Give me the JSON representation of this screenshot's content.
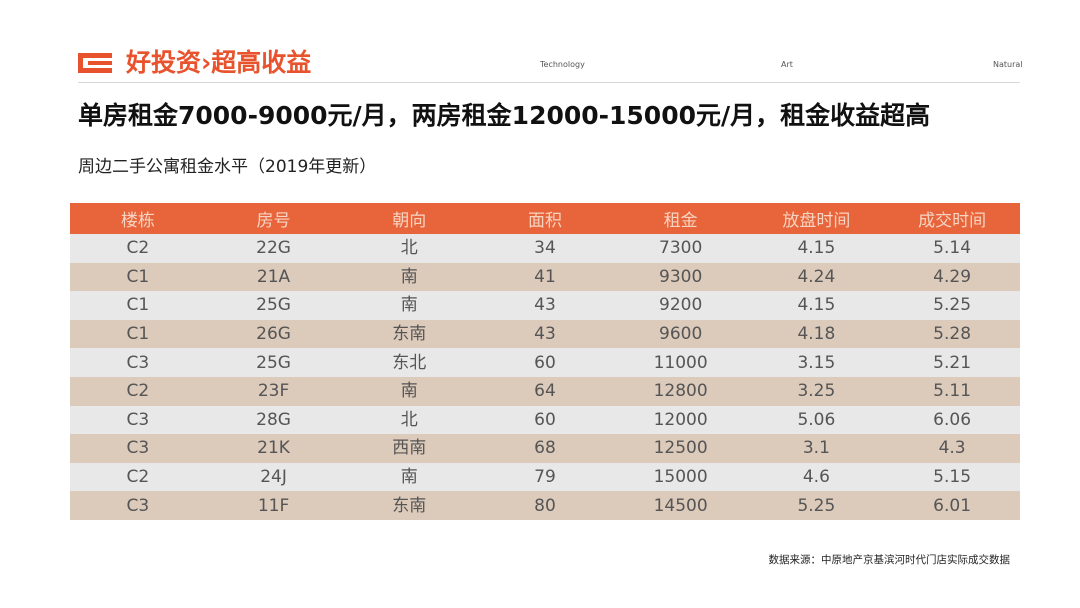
{
  "header": {
    "brand_title": "好投资›超高收益",
    "nav": [
      "Technology",
      "Art",
      "Natural"
    ],
    "accent_color": "#e8522c"
  },
  "headline": "单房租金7000-9000元/月，两房租金12000-15000元/月，租金收益超高",
  "subtitle": "周边二手公寓租金水平（2019年更新）",
  "table": {
    "header_color": "#e8643b",
    "columns": [
      "楼栋",
      "房号",
      "朝向",
      "面积",
      "租金",
      "放盘时间",
      "成交时间"
    ],
    "rows": [
      [
        "C2",
        "22G",
        "北",
        "34",
        "7300",
        "4.15",
        "5.14"
      ],
      [
        "C1",
        "21A",
        "南",
        "41",
        "9300",
        "4.24",
        "4.29"
      ],
      [
        "C1",
        "25G",
        "南",
        "43",
        "9200",
        "4.15",
        "5.25"
      ],
      [
        "C1",
        "26G",
        "东南",
        "43",
        "9600",
        "4.18",
        "5.28"
      ],
      [
        "C3",
        "25G",
        "东北",
        "60",
        "11000",
        "3.15",
        "5.21"
      ],
      [
        "C2",
        "23F",
        "南",
        "64",
        "12800",
        "3.25",
        "5.11"
      ],
      [
        "C3",
        "28G",
        "北",
        "60",
        "12000",
        "5.06",
        "6.06"
      ],
      [
        "C3",
        "21K",
        "西南",
        "68",
        "12500",
        "3.1",
        "4.3"
      ],
      [
        "C2",
        "24J",
        "南",
        "79",
        "15000",
        "4.6",
        "5.15"
      ],
      [
        "C3",
        "11F",
        "东南",
        "80",
        "14500",
        "5.25",
        "6.01"
      ]
    ]
  },
  "source_note": "数据来源：中原地产京基滨河时代门店实际成交数据"
}
